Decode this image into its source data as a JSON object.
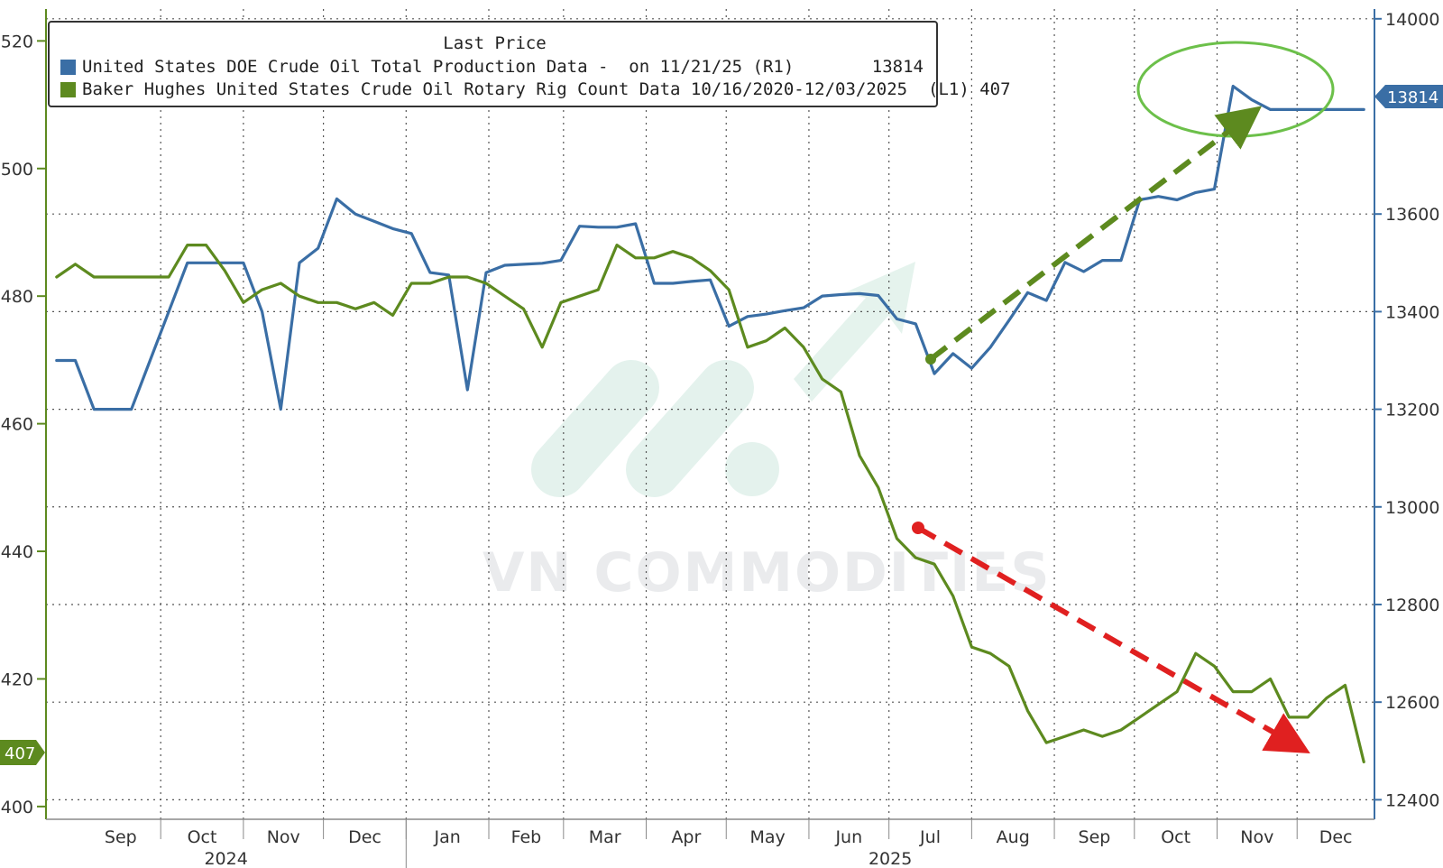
{
  "chart_data": {
    "type": "line",
    "title": "Last Price",
    "x_months": [
      "Sep",
      "Oct",
      "Nov",
      "Dec",
      "Jan",
      "Feb",
      "Mar",
      "Apr",
      "May",
      "Jun",
      "Jul",
      "Aug",
      "Sep",
      "Oct",
      "Nov",
      "Dec"
    ],
    "x_years": [
      "2024",
      "2025"
    ],
    "y_left": {
      "ticks": [
        400,
        420,
        440,
        460,
        480,
        500,
        520
      ],
      "ylim": [
        398,
        525
      ]
    },
    "y_right": {
      "ticks": [
        12400,
        12600,
        12800,
        13000,
        13200,
        13400,
        13600,
        14000
      ],
      "ylim": [
        12360,
        14020
      ]
    },
    "grid": true,
    "legend_position": "top-left",
    "series": [
      {
        "name": "United States DOE Crude Oil Total Production Data -",
        "label_detail": "on 11/21/25  (R1)",
        "last_value": "13814",
        "axis": "right",
        "color": "#3a6ea5",
        "values": [
          [
            "2024-08-23",
            13300
          ],
          [
            "2024-08-30",
            13300
          ],
          [
            "2024-09-06",
            13200
          ],
          [
            "2024-09-13",
            13200
          ],
          [
            "2024-09-20",
            13200
          ],
          [
            "2024-09-27",
            13300
          ],
          [
            "2024-10-04",
            13400
          ],
          [
            "2024-10-11",
            13500
          ],
          [
            "2024-10-18",
            13500
          ],
          [
            "2024-10-25",
            13500
          ],
          [
            "2024-11-01",
            13500
          ],
          [
            "2024-11-08",
            13400
          ],
          [
            "2024-11-15",
            13200
          ],
          [
            "2024-11-22",
            13500
          ],
          [
            "2024-11-29",
            13530
          ],
          [
            "2024-12-06",
            13631
          ],
          [
            "2024-12-13",
            13600
          ],
          [
            "2024-12-20",
            13585
          ],
          [
            "2024-12-27",
            13570
          ],
          [
            "2025-01-03",
            13560
          ],
          [
            "2025-01-10",
            13480
          ],
          [
            "2025-01-17",
            13475
          ],
          [
            "2025-01-24",
            13240
          ],
          [
            "2025-01-31",
            13480
          ],
          [
            "2025-02-07",
            13495
          ],
          [
            "2025-02-14",
            13497
          ],
          [
            "2025-02-21",
            13499
          ],
          [
            "2025-02-28",
            13505
          ],
          [
            "2025-03-07",
            13575
          ],
          [
            "2025-03-14",
            13573
          ],
          [
            "2025-03-21",
            13573
          ],
          [
            "2025-03-28",
            13580
          ],
          [
            "2025-04-04",
            13458
          ],
          [
            "2025-04-11",
            13458
          ],
          [
            "2025-04-18",
            13462
          ],
          [
            "2025-04-25",
            13465
          ],
          [
            "2025-05-02",
            13370
          ],
          [
            "2025-05-09",
            13390
          ],
          [
            "2025-05-16",
            13395
          ],
          [
            "2025-05-23",
            13402
          ],
          [
            "2025-05-30",
            13408
          ],
          [
            "2025-06-06",
            13432
          ],
          [
            "2025-06-13",
            13435
          ],
          [
            "2025-06-20",
            13437
          ],
          [
            "2025-06-27",
            13433
          ],
          [
            "2025-07-04",
            13385
          ],
          [
            "2025-07-11",
            13375
          ],
          [
            "2025-07-18",
            13273
          ],
          [
            "2025-07-25",
            13314
          ],
          [
            "2025-08-01",
            13284
          ],
          [
            "2025-08-08",
            13327
          ],
          [
            "2025-08-15",
            13382
          ],
          [
            "2025-08-22",
            13439
          ],
          [
            "2025-08-29",
            13423
          ],
          [
            "2025-09-05",
            13501
          ],
          [
            "2025-09-12",
            13482
          ],
          [
            "2025-09-19",
            13505
          ],
          [
            "2025-09-26",
            13505
          ],
          [
            "2025-10-03",
            13629
          ],
          [
            "2025-10-10",
            13636
          ],
          [
            "2025-10-17",
            13629
          ],
          [
            "2025-10-24",
            13644
          ],
          [
            "2025-10-31",
            13651
          ],
          [
            "2025-11-07",
            13862
          ],
          [
            "2025-11-14",
            13834
          ],
          [
            "2025-11-21",
            13814
          ],
          [
            "2025-11-28",
            13814
          ],
          [
            "2025-12-05",
            13814
          ],
          [
            "2025-12-12",
            13814
          ],
          [
            "2025-12-19",
            13814
          ],
          [
            "2025-12-26",
            13814
          ]
        ]
      },
      {
        "name": "Baker Hughes United States Crude Oil Rotary Rig Count Data 10/16/2020-12/03/2025",
        "label_detail": "(L1)",
        "last_value": "407",
        "axis": "left",
        "color": "#5d8a1f",
        "values": [
          [
            "2024-08-23",
            483
          ],
          [
            "2024-08-30",
            485
          ],
          [
            "2024-09-06",
            483
          ],
          [
            "2024-09-13",
            483
          ],
          [
            "2024-09-20",
            483
          ],
          [
            "2024-09-27",
            483
          ],
          [
            "2024-10-04",
            483
          ],
          [
            "2024-10-11",
            488
          ],
          [
            "2024-10-18",
            488
          ],
          [
            "2024-10-25",
            484
          ],
          [
            "2024-11-01",
            479
          ],
          [
            "2024-11-08",
            481
          ],
          [
            "2024-11-15",
            482
          ],
          [
            "2024-11-22",
            480
          ],
          [
            "2024-11-29",
            479
          ],
          [
            "2024-12-06",
            479
          ],
          [
            "2024-12-13",
            478
          ],
          [
            "2024-12-20",
            479
          ],
          [
            "2024-12-27",
            477
          ],
          [
            "2025-01-03",
            482
          ],
          [
            "2025-01-10",
            482
          ],
          [
            "2025-01-17",
            483
          ],
          [
            "2025-01-24",
            483
          ],
          [
            "2025-01-31",
            482
          ],
          [
            "2025-02-07",
            480
          ],
          [
            "2025-02-14",
            478
          ],
          [
            "2025-02-21",
            472
          ],
          [
            "2025-02-28",
            479
          ],
          [
            "2025-03-07",
            480
          ],
          [
            "2025-03-14",
            481
          ],
          [
            "2025-03-21",
            488
          ],
          [
            "2025-03-28",
            486
          ],
          [
            "2025-04-04",
            486
          ],
          [
            "2025-04-11",
            487
          ],
          [
            "2025-04-18",
            486
          ],
          [
            "2025-04-25",
            484
          ],
          [
            "2025-05-02",
            481
          ],
          [
            "2025-05-09",
            472
          ],
          [
            "2025-05-16",
            473
          ],
          [
            "2025-05-23",
            475
          ],
          [
            "2025-05-30",
            472
          ],
          [
            "2025-06-06",
            467
          ],
          [
            "2025-06-13",
            465
          ],
          [
            "2025-06-20",
            455
          ],
          [
            "2025-06-27",
            450
          ],
          [
            "2025-07-04",
            442
          ],
          [
            "2025-07-11",
            439
          ],
          [
            "2025-07-18",
            438
          ],
          [
            "2025-07-25",
            433
          ],
          [
            "2025-08-01",
            425
          ],
          [
            "2025-08-08",
            424
          ],
          [
            "2025-08-15",
            422
          ],
          [
            "2025-08-22",
            415
          ],
          [
            "2025-08-29",
            410
          ],
          [
            "2025-09-05",
            411
          ],
          [
            "2025-09-12",
            412
          ],
          [
            "2025-09-19",
            411
          ],
          [
            "2025-09-26",
            412
          ],
          [
            "2025-10-03",
            414
          ],
          [
            "2025-10-10",
            416
          ],
          [
            "2025-10-17",
            418
          ],
          [
            "2025-10-24",
            424
          ],
          [
            "2025-10-31",
            422
          ],
          [
            "2025-11-07",
            418
          ],
          [
            "2025-11-14",
            418
          ],
          [
            "2025-11-21",
            420
          ],
          [
            "2025-11-28",
            414
          ],
          [
            "2025-12-05",
            414
          ],
          [
            "2025-12-12",
            417
          ],
          [
            "2025-12-19",
            419
          ],
          [
            "2025-12-26",
            407
          ]
        ]
      }
    ],
    "badges": {
      "left": {
        "text": "407",
        "color": "#5d8a1f"
      },
      "right": {
        "text": "13814",
        "color": "#3a6ea5"
      }
    },
    "annotations": {
      "green_trend_arrow_color": "#5d8a1f",
      "red_trend_arrow_color": "#e02020",
      "highlight_ellipse_color": "#6cc04a"
    },
    "watermark": "VN COMMODITIES"
  }
}
